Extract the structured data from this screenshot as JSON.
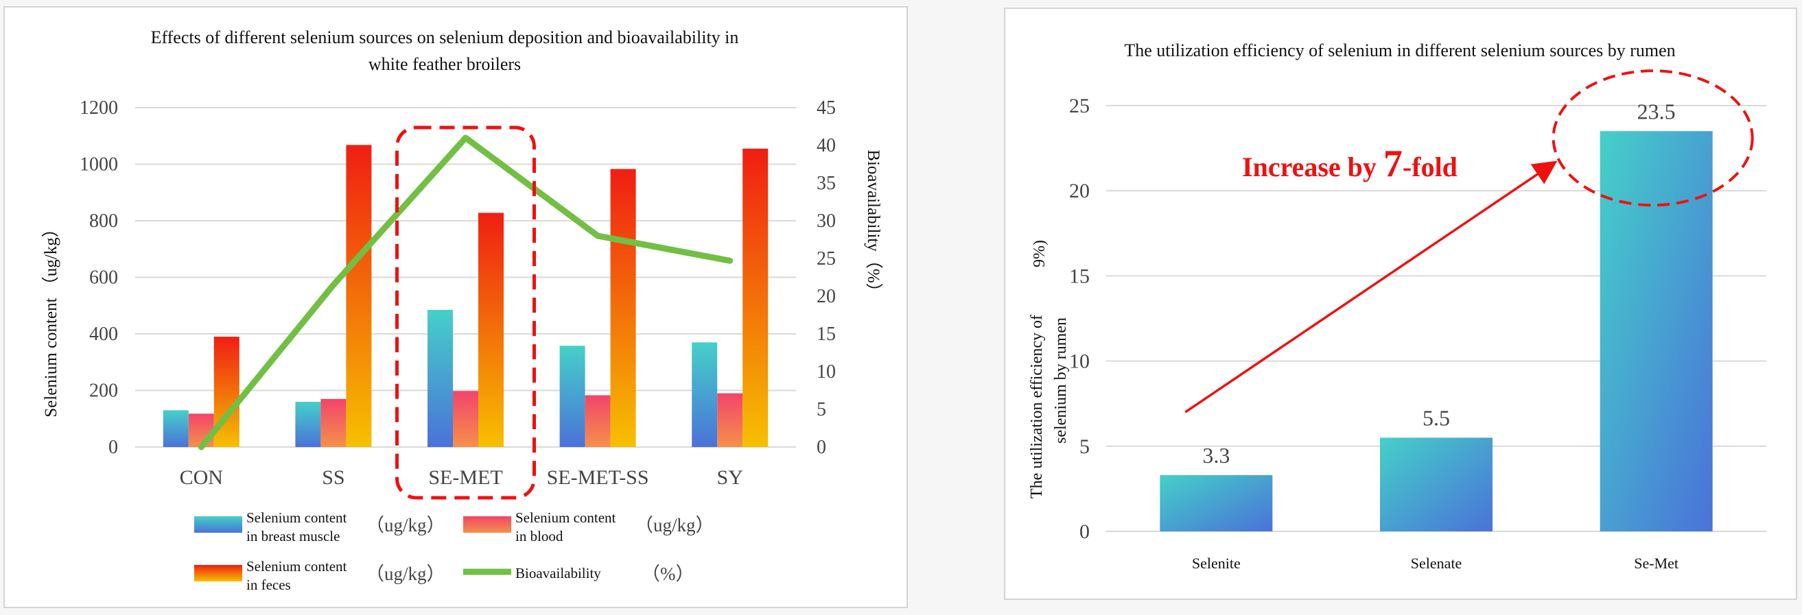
{
  "chart_data": [
    {
      "type": "bar+line",
      "title_lines": [
        "Effects of different selenium sources on selenium deposition and bioavailability in",
        "white feather broilers"
      ],
      "categories": [
        "CON",
        "SS",
        "SE-MET",
        "SE-MET-SS",
        "SY"
      ],
      "ylabel": "Selenium content （ug/kg）",
      "y2label": "Bioavailability（%）",
      "ylim": [
        0,
        1200
      ],
      "yticks": [
        0,
        200,
        400,
        600,
        800,
        1000,
        1200
      ],
      "y2lim": [
        0,
        45
      ],
      "y2ticks": [
        0,
        5,
        10,
        15,
        20,
        25,
        30,
        35,
        40,
        45
      ],
      "grid": true,
      "series": [
        {
          "name_lines": [
            "Selenium content",
            "in breast muscle"
          ],
          "unit": "（ug/kg）",
          "type": "bar",
          "color_top": "#45d0c9",
          "color_bottom": "#4a72d8",
          "values": [
            130,
            160,
            485,
            358,
            370
          ]
        },
        {
          "name_lines": [
            "Selenium content",
            "in blood"
          ],
          "unit": "（ug/kg）",
          "type": "bar",
          "color_top": "#f2456a",
          "color_bottom": "#f5904a",
          "values": [
            118,
            170,
            198,
            183,
            190
          ]
        },
        {
          "name_lines": [
            "Selenium content",
            "in feces"
          ],
          "unit": "（ug/kg）",
          "type": "bar",
          "color_top": "#f01e12",
          "color_bottom": "#f6c000",
          "values": [
            390,
            1068,
            828,
            983,
            1055
          ]
        },
        {
          "name_lines": [
            "Bioavailability"
          ],
          "unit": "（%）",
          "type": "line",
          "axis": "right",
          "color": "#72bf44",
          "values": [
            0,
            21.5,
            41,
            28,
            24.7
          ]
        }
      ],
      "highlight_category": "SE-MET",
      "highlight_color": "#ee1111"
    },
    {
      "type": "bar",
      "title": "The utilization efficiency of selenium in different selenium sources by rumen",
      "categories": [
        "Selenite",
        "Selenate",
        "Se-Met"
      ],
      "values": [
        3.3,
        5.5,
        23.5
      ],
      "data_labels": [
        "3.3",
        "5.5",
        "23.5"
      ],
      "ylabel_lines": [
        "The utilization efficiency of",
        "selenium by rumen",
        "9%)"
      ],
      "ylim": [
        0,
        25
      ],
      "yticks": [
        0,
        5,
        10,
        15,
        20,
        25
      ],
      "grid": true,
      "bar_color_top": "#45d0c9",
      "bar_color_bottom": "#4a72d8",
      "annotation": {
        "prefix": "Increase by ",
        "number": "7",
        "suffix": "-fold",
        "color": "#ee1111",
        "from_value": 7,
        "to_value": 21.6,
        "highlight_category": "Se-Met"
      }
    }
  ]
}
